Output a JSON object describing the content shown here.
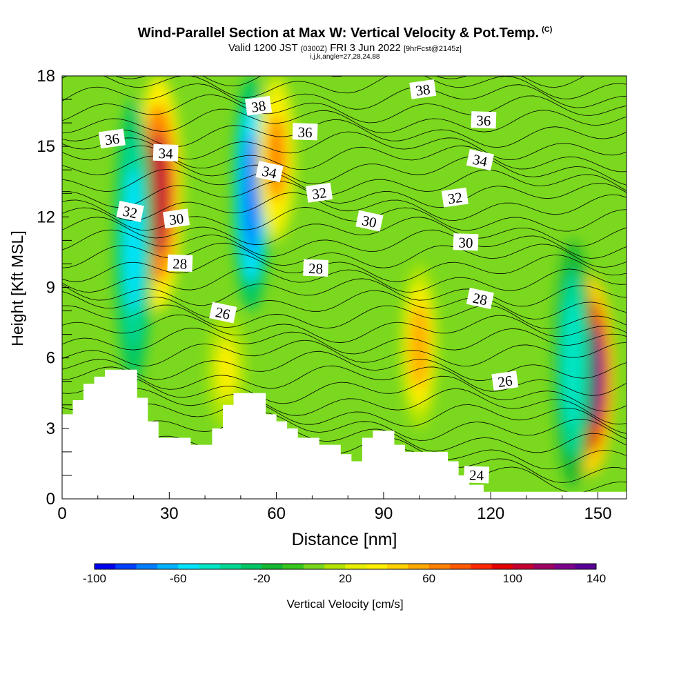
{
  "title": {
    "main": "Wind-Parallel Section at Max W: Vertical Velocity & Pot.Temp.",
    "copyright": "(C)",
    "valid_prefix": "Valid 1200 JST",
    "valid_z": "(0300Z)",
    "valid_date": "FRI 3 Jun 2022",
    "forecast": "[9hrFcst@2145z]",
    "params": "i,j,k,angle=27,28,24,88"
  },
  "chart_data": {
    "type": "heatmap",
    "xlabel": "Distance [nm]",
    "ylabel": "Height [Kft MSL]",
    "xlim": [
      0,
      158
    ],
    "ylim": [
      0,
      18
    ],
    "xticks": [
      0,
      30,
      60,
      90,
      120,
      150
    ],
    "yticks": [
      0,
      3,
      6,
      9,
      12,
      15,
      18
    ],
    "colorbar": {
      "label": "Vertical Velocity [cm/s]",
      "ticks": [
        -100,
        -60,
        -20,
        20,
        60,
        100,
        140
      ],
      "range": [
        -100,
        140
      ],
      "step": 10,
      "colors": [
        "#0000f0",
        "#0040ff",
        "#0080ff",
        "#00b4ff",
        "#00e4ff",
        "#00e6c8",
        "#00d896",
        "#00c864",
        "#16b832",
        "#38c81e",
        "#7ad81e",
        "#b4e600",
        "#e8f000",
        "#fff000",
        "#ffd200",
        "#ffaa00",
        "#ff8200",
        "#ff5a00",
        "#ff2800",
        "#e60000",
        "#c80032",
        "#a00064",
        "#7d008c",
        "#5a0096"
      ]
    },
    "terrain_height_kft": [
      [
        0,
        3.6
      ],
      [
        3,
        4.2
      ],
      [
        6,
        4.9
      ],
      [
        9,
        5.2
      ],
      [
        12,
        5.5
      ],
      [
        18,
        5.5
      ],
      [
        21,
        4.3
      ],
      [
        24,
        3.3
      ],
      [
        27,
        2.6
      ],
      [
        36,
        2.3
      ],
      [
        42,
        3.0
      ],
      [
        45,
        4.0
      ],
      [
        48,
        4.5
      ],
      [
        57,
        3.6
      ],
      [
        60,
        3.3
      ],
      [
        63,
        3.0
      ],
      [
        66,
        2.6
      ],
      [
        72,
        2.3
      ],
      [
        78,
        1.9
      ],
      [
        81,
        1.6
      ],
      [
        84,
        2.6
      ],
      [
        87,
        2.9
      ],
      [
        93,
        2.3
      ],
      [
        96,
        2.0
      ],
      [
        108,
        1.6
      ],
      [
        111,
        1.0
      ],
      [
        114,
        0.6
      ],
      [
        118,
        0.3
      ],
      [
        158,
        0.3
      ]
    ],
    "velocity_features": [
      {
        "x": 27,
        "z_bottom": 8,
        "z_top": 18,
        "value_cm_s": 100
      },
      {
        "x": 20,
        "z_bottom": 5,
        "z_top": 17,
        "value_cm_s": -60
      },
      {
        "x": 53,
        "z_bottom": 8,
        "z_top": 18,
        "value_cm_s": -80
      },
      {
        "x": 60,
        "z_bottom": 11,
        "z_top": 18,
        "value_cm_s": 60
      },
      {
        "x": 46,
        "z_bottom": 3,
        "z_top": 8,
        "value_cm_s": 30
      },
      {
        "x": 100,
        "z_bottom": 3,
        "z_top": 10,
        "value_cm_s": 50
      },
      {
        "x": 148,
        "z_bottom": 1,
        "z_top": 9.5,
        "value_cm_s": 140
      },
      {
        "x": 143,
        "z_bottom": 0.5,
        "z_top": 11,
        "value_cm_s": -50
      }
    ],
    "isentrope_labels": [
      {
        "text": "36",
        "x": 14,
        "y": 15.3
      },
      {
        "text": "34",
        "x": 29,
        "y": 14.7
      },
      {
        "text": "32",
        "x": 19,
        "y": 12.2
      },
      {
        "text": "30",
        "x": 32,
        "y": 11.9
      },
      {
        "text": "28",
        "x": 33,
        "y": 10.0
      },
      {
        "text": "26",
        "x": 45,
        "y": 7.9
      },
      {
        "text": "38",
        "x": 55,
        "y": 16.7
      },
      {
        "text": "36",
        "x": 68,
        "y": 15.6
      },
      {
        "text": "34",
        "x": 58,
        "y": 13.9
      },
      {
        "text": "32",
        "x": 72,
        "y": 13.0
      },
      {
        "text": "28",
        "x": 71,
        "y": 9.8
      },
      {
        "text": "30",
        "x": 86,
        "y": 11.8
      },
      {
        "text": "38",
        "x": 101,
        "y": 17.4
      },
      {
        "text": "36",
        "x": 118,
        "y": 16.1
      },
      {
        "text": "34",
        "x": 117,
        "y": 14.4
      },
      {
        "text": "32",
        "x": 110,
        "y": 12.8
      },
      {
        "text": "30",
        "x": 113,
        "y": 10.9
      },
      {
        "text": "28",
        "x": 117,
        "y": 8.5
      },
      {
        "text": "26",
        "x": 124,
        "y": 5.0
      },
      {
        "text": "24",
        "x": 116,
        "y": 1.0
      }
    ]
  }
}
